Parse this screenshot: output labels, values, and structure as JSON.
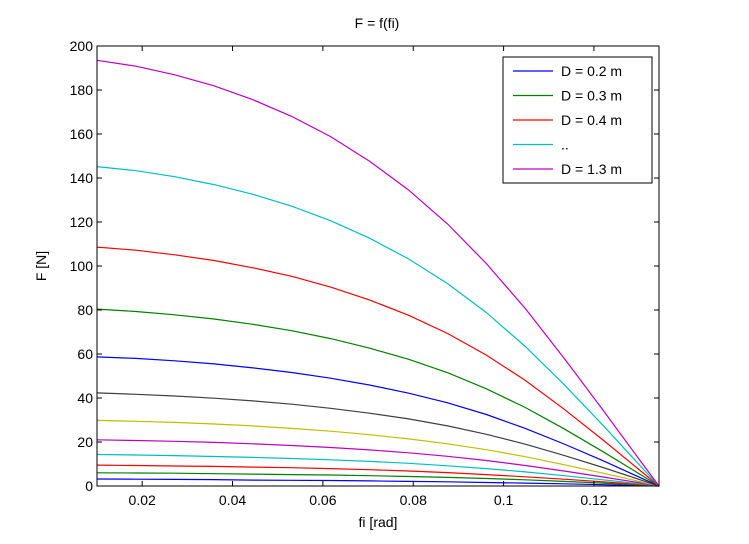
{
  "chart_data": {
    "type": "line",
    "title": "F = f(fi)",
    "xlabel": "fi [rad]",
    "ylabel": "F [N]",
    "xlim": [
      0.01,
      0.1344
    ],
    "ylim": [
      0,
      200
    ],
    "xticks": [
      0.02,
      0.04,
      0.06,
      0.08,
      0.1,
      0.12
    ],
    "xtick_labels": [
      "0.02",
      "0.04",
      "0.06",
      "0.08",
      "0.1",
      "0.12"
    ],
    "yticks": [
      0,
      20,
      40,
      60,
      80,
      100,
      120,
      140,
      160,
      180,
      200
    ],
    "ytick_labels": [
      "0",
      "20",
      "40",
      "60",
      "80",
      "100",
      "120",
      "140",
      "160",
      "180",
      "200"
    ],
    "grid": false,
    "legend_position": "top-right",
    "legend": [
      {
        "label": "D = 0.2 m",
        "color": "#0000ff"
      },
      {
        "label": "D = 0.3 m",
        "color": "#008000"
      },
      {
        "label": "D = 0.4 m",
        "color": "#ff0000"
      },
      {
        "label": "..",
        "color": "#00bfbf"
      },
      {
        "label": "D = 1.3 m",
        "color": "#bf00bf"
      }
    ],
    "x": [
      0.01,
      0.0186,
      0.0272,
      0.0359,
      0.0445,
      0.0531,
      0.0617,
      0.0703,
      0.079,
      0.0876,
      0.0962,
      0.1048,
      0.1134,
      0.122,
      0.1306,
      0.1344
    ],
    "series": [
      {
        "color": "#0000ff",
        "values": [
          3.2,
          3.1,
          3.0,
          2.9,
          2.7,
          2.6,
          2.5,
          2.3,
          2.1,
          1.9,
          1.6,
          1.3,
          1.0,
          0.6,
          0.2,
          0.0
        ]
      },
      {
        "color": "#008000",
        "values": [
          6.0,
          5.9,
          5.8,
          5.6,
          5.4,
          5.2,
          5.0,
          4.7,
          4.3,
          3.9,
          3.4,
          2.8,
          2.1,
          1.3,
          0.4,
          0.0
        ]
      },
      {
        "color": "#ff0000",
        "values": [
          9.5,
          9.3,
          9.1,
          8.9,
          8.6,
          8.3,
          7.9,
          7.4,
          6.8,
          6.1,
          5.2,
          4.2,
          3.1,
          1.9,
          0.6,
          0.0
        ]
      },
      {
        "color": "#00bfbf",
        "values": [
          14.3,
          14.1,
          13.8,
          13.4,
          13.0,
          12.5,
          11.9,
          11.2,
          10.3,
          9.2,
          7.9,
          6.4,
          4.7,
          2.8,
          0.9,
          0.0
        ]
      },
      {
        "color": "#bf00bf",
        "values": [
          21.0,
          20.7,
          20.3,
          19.8,
          19.2,
          18.4,
          17.5,
          16.4,
          15.1,
          13.5,
          11.6,
          9.3,
          6.8,
          4.1,
          1.3,
          0.0
        ]
      },
      {
        "color": "#bfbf00",
        "values": [
          29.8,
          29.4,
          28.9,
          28.2,
          27.3,
          26.2,
          24.9,
          23.3,
          21.4,
          19.2,
          16.5,
          13.3,
          9.7,
          5.8,
          1.8,
          0.0
        ]
      },
      {
        "color": "#404040",
        "values": [
          42.3,
          41.7,
          40.9,
          39.9,
          38.7,
          37.2,
          35.3,
          33.1,
          30.5,
          27.3,
          23.5,
          19.0,
          13.9,
          8.4,
          2.6,
          0.0
        ]
      },
      {
        "color": "#0000ff",
        "values": [
          58.7,
          58.0,
          56.9,
          55.5,
          53.7,
          51.6,
          49.0,
          45.9,
          42.2,
          37.8,
          32.5,
          26.2,
          19.1,
          11.5,
          3.5,
          0.0
        ]
      },
      {
        "color": "#008000",
        "values": [
          80.4,
          79.3,
          77.8,
          75.9,
          73.5,
          70.6,
          67.0,
          62.7,
          57.6,
          51.5,
          44.2,
          35.7,
          26.0,
          15.6,
          4.8,
          0.0
        ]
      },
      {
        "color": "#ff0000",
        "values": [
          108.6,
          107.2,
          105.1,
          102.5,
          99.2,
          95.3,
          90.4,
          84.6,
          77.6,
          69.3,
          59.5,
          48.0,
          34.9,
          20.9,
          6.4,
          0.0
        ]
      },
      {
        "color": "#00bfbf",
        "values": [
          145.2,
          143.3,
          140.6,
          137.0,
          132.6,
          127.2,
          120.6,
          112.7,
          103.2,
          92.0,
          78.8,
          63.4,
          46.1,
          27.6,
          8.4,
          0.0
        ]
      },
      {
        "color": "#bf00bf",
        "values": [
          193.5,
          190.8,
          186.9,
          181.9,
          175.6,
          168.0,
          158.8,
          147.7,
          134.5,
          119.1,
          101.1,
          80.7,
          58.1,
          34.5,
          10.5,
          0.0
        ]
      }
    ]
  }
}
